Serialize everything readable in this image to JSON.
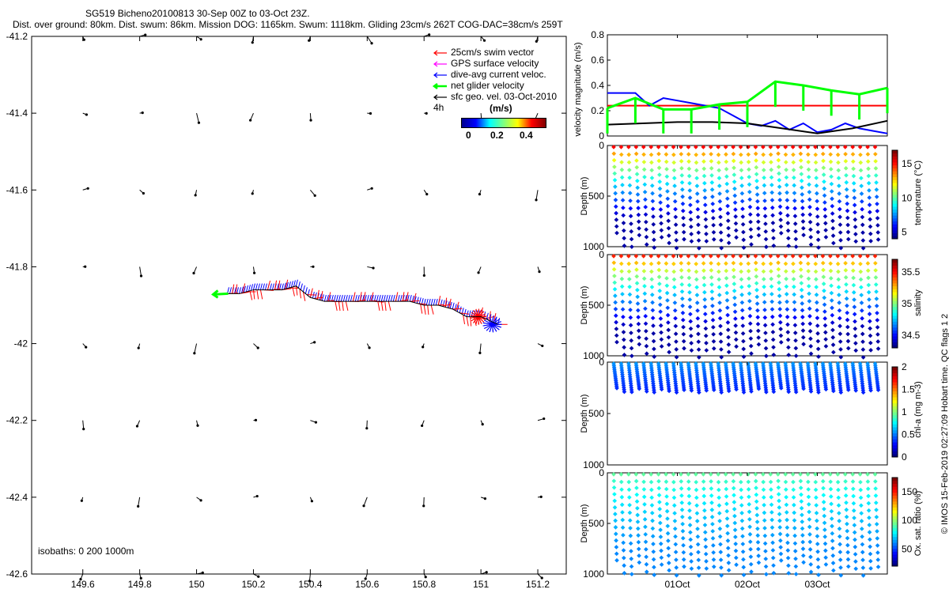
{
  "header": {
    "title": "SG519 Bicheno20100813 30-Sep 00Z to 03-Oct 23Z.",
    "stats": "Dist. over ground: 80km. Dist. swum: 86km. Mission DOG: 1165km. Swum: 1118km. Gliding 23cm/s 262T COG-DAC=38cm/s 259T"
  },
  "map": {
    "legend": [
      {
        "label": "25cm/s swim vector",
        "color": "#ff0000"
      },
      {
        "label": "GPS surface velocity",
        "color": "#ff00ff"
      },
      {
        "label": "dive-avg current veloc.",
        "color": "#0000ff"
      },
      {
        "label": "net glider velocity",
        "color": "#00ff00"
      },
      {
        "label": "sfc geo. vel. 03-Oct-2010",
        "color": "#000000"
      }
    ],
    "interval_label": "4h",
    "colorbar_unit": "(m/s)",
    "colorbar_ticks": [
      "0",
      "0.2",
      "0.4"
    ],
    "isobaths_label": "isobaths: 0   200  1000m"
  },
  "side_caption": "© IMOS 15-Feb-2019 02:27:09 Hobart time. QC flags 1  2",
  "colors": {
    "swim": "#ff0000",
    "dac": "#0000ff",
    "net": "#00ff00",
    "geo": "#000000"
  },
  "chart_data": [
    {
      "type": "scatter",
      "name": "glider track map",
      "xlim": [
        149.42,
        151.3
      ],
      "ylim": [
        -42.6,
        -41.2
      ],
      "xticks": [
        149.6,
        149.8,
        150,
        150.2,
        150.4,
        150.6,
        150.8,
        151,
        151.2
      ],
      "xtick_labels": [
        "149.6",
        "149.8",
        "150",
        "150.2",
        "150.4",
        "150.6",
        "150.8",
        "151",
        "151.2"
      ],
      "yticks": [
        -41.2,
        -41.4,
        -41.6,
        -41.8,
        -42,
        -42.2,
        -42.4,
        -42.6
      ],
      "ytick_labels": [
        "-41.2",
        "-41.4",
        "-41.6",
        "-41.8",
        "-42",
        "-42.2",
        "-42.4",
        "-42.6"
      ],
      "track_lon": [
        151.06,
        151.0,
        150.95,
        150.9,
        150.85,
        150.8,
        150.75,
        150.7,
        150.65,
        150.6,
        150.55,
        150.5,
        150.45,
        150.4,
        150.35,
        150.3,
        150.25,
        150.2,
        150.15,
        150.1
      ],
      "track_lat": [
        -41.95,
        -41.93,
        -41.93,
        -41.91,
        -41.9,
        -41.9,
        -41.89,
        -41.89,
        -41.89,
        -41.89,
        -41.89,
        -41.89,
        -41.89,
        -41.88,
        -41.85,
        -41.86,
        -41.86,
        -41.86,
        -41.87,
        -41.87
      ]
    },
    {
      "type": "line",
      "name": "velocity magnitude",
      "ylabel": "velocity magnitude (m/s)",
      "ylim": [
        0,
        0.8
      ],
      "yticks": [
        0,
        0.2,
        0.4,
        0.6,
        0.8
      ],
      "series": [
        {
          "color": "#ff0000",
          "x": [
            0,
            4
          ],
          "values": [
            0.24,
            0.24
          ]
        },
        {
          "color": "#0000ff",
          "x": [
            0,
            0.2,
            0.4,
            0.6,
            0.8,
            1.0,
            1.2,
            1.4,
            1.6,
            1.8,
            2.0,
            2.2,
            2.4,
            2.6,
            2.8,
            3.0,
            3.2,
            3.4,
            3.6,
            3.8,
            4.0
          ],
          "values": [
            0.34,
            0.34,
            0.34,
            0.24,
            0.3,
            0.28,
            0.26,
            0.24,
            0.22,
            0.16,
            0.1,
            0.08,
            0.12,
            0.05,
            0.1,
            0.03,
            0.05,
            0.1,
            0.06,
            0.04,
            0.02
          ]
        },
        {
          "color": "#000000",
          "x": [
            0,
            0.5,
            1.0,
            1.5,
            2.0,
            2.5,
            3.0,
            3.5,
            4.0
          ],
          "values": [
            0.09,
            0.1,
            0.11,
            0.11,
            0.1,
            0.06,
            0.02,
            0.06,
            0.12
          ]
        },
        {
          "color": "#00ff00",
          "x": [
            0,
            0.4,
            0.8,
            1.2,
            1.6,
            2.0,
            2.4,
            2.8,
            3.2,
            3.6,
            4.0
          ],
          "values": [
            0.22,
            0.3,
            0.21,
            0.21,
            0.25,
            0.27,
            0.43,
            0.4,
            0.36,
            0.33,
            0.38
          ]
        }
      ]
    },
    {
      "type": "scatter",
      "name": "temperature section",
      "ylabel": "Depth (m)",
      "colorbar_label": "temperature (°C)",
      "colorbar_ticks": [
        "5",
        "10",
        "15"
      ],
      "clim": [
        4,
        17
      ],
      "ylim": [
        0,
        1000
      ],
      "max_depth": 1000,
      "surface_value": 16.5,
      "deep_value": 4.5
    },
    {
      "type": "scatter",
      "name": "salinity section",
      "ylabel": "Depth (m)",
      "colorbar_label": "salinity",
      "colorbar_ticks": [
        "34.5",
        "35",
        "35.5"
      ],
      "clim": [
        34.3,
        35.7
      ],
      "ylim": [
        0,
        1000
      ],
      "max_depth": 1000,
      "surface_value": 35.6,
      "deep_value": 34.35
    },
    {
      "type": "scatter",
      "name": "chlorophyll section",
      "ylabel": "Depth (m)",
      "colorbar_label": "chl-a (mg m-3)",
      "colorbar_ticks": [
        "0",
        "0.5",
        "1",
        "1.5",
        "2"
      ],
      "clim": [
        0,
        2
      ],
      "ylim": [
        0,
        1000
      ],
      "max_depth": 280,
      "surface_value": 0.6,
      "deep_value": 0.1
    },
    {
      "type": "scatter",
      "name": "oxygen section",
      "ylabel": "Depth (m)",
      "colorbar_label": "Ox. sat. ratio (%)",
      "colorbar_ticks": [
        "50",
        "100",
        "150"
      ],
      "clim": [
        20,
        175
      ],
      "ylim": [
        0,
        1000
      ],
      "max_depth": 1000,
      "surface_value": 96,
      "deep_value": 60
    }
  ],
  "time_axis": {
    "labels": [
      "01Oct",
      "02Oct",
      "03Oct"
    ],
    "label_days": [
      1,
      2,
      3
    ],
    "days_span": 4
  }
}
